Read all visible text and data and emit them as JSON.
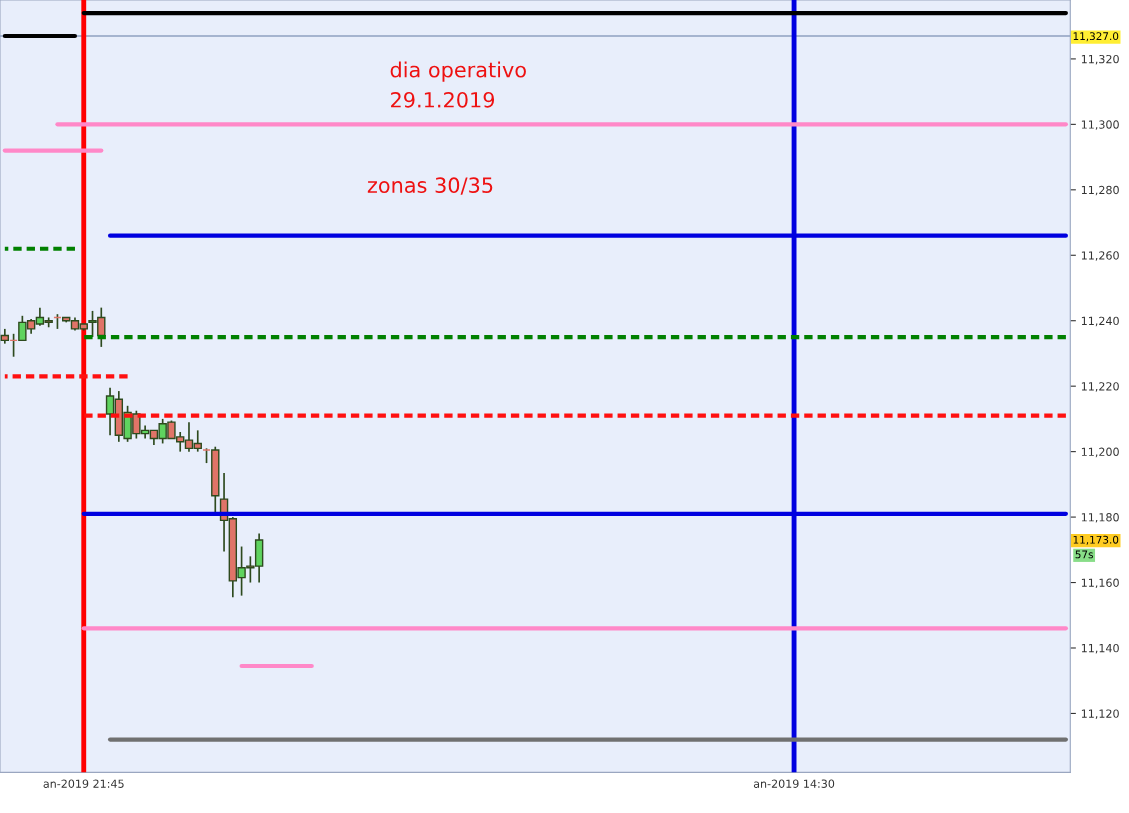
{
  "chart_data": {
    "type": "candlestick",
    "categories": [
      null,
      null,
      null,
      null,
      null,
      null,
      null,
      null,
      null,
      "an-2019 21:45",
      null,
      null,
      null,
      null,
      null,
      null,
      null,
      null,
      null,
      null,
      null,
      null,
      null,
      null,
      null,
      null,
      null,
      null,
      null,
      null,
      null,
      null,
      null,
      null,
      null,
      null,
      null,
      null,
      null,
      null,
      null,
      null,
      null,
      null,
      null,
      null,
      null,
      null,
      null,
      null,
      null,
      null,
      null,
      null,
      null,
      null,
      null,
      null,
      null,
      null,
      null,
      null,
      null,
      null,
      null,
      null,
      null,
      null,
      null,
      null,
      null,
      null,
      null,
      null,
      null,
      null,
      null,
      null,
      null,
      null,
      null,
      null,
      null,
      null,
      null,
      null,
      null,
      null,
      null,
      null,
      "an-2019 14:30",
      null,
      null,
      null,
      null,
      null,
      null,
      null,
      null,
      null,
      null,
      null,
      null,
      null,
      null,
      null,
      null,
      null,
      null,
      null,
      null,
      null,
      null,
      null,
      null,
      null,
      null,
      null,
      null,
      null,
      null,
      null
    ],
    "ohlc": [
      [
        11235.5,
        11237.5,
        11233,
        11234
      ],
      [
        11234,
        11236,
        11229,
        11234
      ],
      [
        11234,
        11241.5,
        11234,
        11239.5
      ],
      [
        11240,
        11240.5,
        11236,
        11237.5
      ],
      [
        11239,
        11244,
        11238.5,
        11241
      ],
      [
        11240,
        11241,
        11238,
        11239.5
      ],
      [
        11241,
        11242,
        11237.5,
        11241
      ],
      [
        11241,
        11241,
        11239.5,
        11240
      ],
      [
        11240,
        11241,
        11237,
        11237.5
      ],
      [
        11239,
        11239,
        11237,
        11237.5
      ],
      [
        11239.5,
        11243,
        11235,
        11240
      ],
      [
        11241,
        11244,
        11232,
        11235.5
      ],
      [
        11211.5,
        11219.5,
        11205,
        11217
      ],
      [
        11216,
        11218.5,
        11203,
        11205
      ],
      [
        11204,
        11214,
        11203,
        11212
      ],
      [
        11211.5,
        11212.5,
        11204,
        11205.5
      ],
      [
        11205.5,
        11208,
        11204,
        11206.5
      ],
      [
        11206.5,
        11206.5,
        11202,
        11204
      ],
      [
        11204,
        11210,
        11202.5,
        11208.5
      ],
      [
        11209,
        11209.5,
        11204,
        11204
      ],
      [
        11204.5,
        11206,
        11200,
        11203
      ],
      [
        11203.5,
        11209,
        11200,
        11201
      ],
      [
        11202.5,
        11206.5,
        11200,
        11201
      ],
      [
        11200.5,
        11201,
        11196.5,
        11200.5
      ],
      [
        11200.5,
        11201.5,
        11181,
        11186.5
      ],
      [
        11185.5,
        11193.5,
        11169.5,
        11179
      ],
      [
        11179.5,
        11180,
        11155.5,
        11160.5
      ],
      [
        11161.5,
        11171,
        11156,
        11164.5
      ],
      [
        11165,
        11168,
        11160,
        11164.5
      ],
      [
        11165,
        11175,
        11160,
        11173
      ],
      null,
      null,
      null,
      null,
      null,
      null,
      null,
      null,
      null,
      null,
      null,
      null,
      null,
      null,
      null,
      null,
      null,
      null,
      null,
      null,
      null,
      null,
      null,
      null,
      null,
      null,
      null,
      null,
      null,
      null,
      null,
      null,
      null,
      null,
      null,
      null,
      null,
      null,
      null,
      null,
      null,
      null,
      null,
      null,
      null,
      null,
      null,
      null,
      null,
      null,
      null,
      null,
      null,
      null,
      null,
      null,
      null,
      null,
      null,
      null,
      null,
      null,
      null,
      null,
      null,
      null,
      null,
      null,
      null,
      null,
      null,
      null,
      null,
      null,
      null,
      null,
      null,
      null,
      null,
      null,
      null,
      null,
      null,
      null,
      null,
      null,
      null,
      null,
      null,
      null,
      null,
      null
    ],
    "colors": [
      "#e07468",
      "#e07468",
      "#5fd35f",
      "#e07468",
      "#5fd35f",
      "#e07468",
      "#e07468",
      "#e07468",
      "#e07468",
      "#e07468",
      "#5fd35f",
      "#e07468",
      "#5fd35f",
      "#e07468",
      "#5fd35f",
      "#e07468",
      "#5fd35f",
      "#e07468",
      "#5fd35f",
      "#e07468",
      "#e07468",
      "#e07468",
      "#e07468",
      "#e07468",
      "#e07468",
      "#e07468",
      "#e07468",
      "#5fd35f",
      "#e07468",
      "#5fd35f",
      null,
      null,
      null,
      null,
      null,
      null,
      null,
      null,
      null,
      null,
      null,
      null,
      null,
      null,
      null,
      null,
      null,
      null,
      null,
      null,
      null,
      null,
      null,
      null,
      null,
      null,
      null,
      null,
      null,
      null,
      null,
      null,
      null,
      null,
      null,
      null,
      null,
      null,
      null,
      null,
      null,
      null,
      null,
      null,
      null,
      null,
      null,
      null,
      null,
      null,
      null,
      null,
      null,
      null,
      null,
      null,
      null,
      null,
      null,
      null,
      null,
      null,
      null,
      null,
      null,
      null,
      null,
      null,
      null,
      null,
      null,
      null,
      null,
      null,
      null,
      null,
      null,
      null,
      null,
      null,
      null,
      null,
      null,
      null,
      null,
      null,
      null,
      null,
      null,
      null,
      null,
      null
    ],
    "series": [
      {
        "type": "line",
        "color": "#000000",
        "line_style": "solid",
        "values": [
          null,
          null,
          null,
          null,
          null,
          null,
          null,
          null,
          null,
          11334,
          11334,
          11334,
          11334,
          11334,
          11334,
          11334,
          11334,
          11334,
          11334,
          11334,
          11334,
          11334,
          11334,
          11334,
          11334,
          11334,
          11334,
          11334,
          11334,
          11334,
          11334,
          11334,
          11334,
          11334,
          11334,
          11334,
          11334,
          11334,
          11334,
          11334,
          11334,
          11334,
          11334,
          11334,
          11334,
          11334,
          11334,
          11334,
          11334,
          11334,
          11334,
          11334,
          11334,
          11334,
          11334,
          11334,
          11334,
          11334,
          11334,
          11334,
          11334,
          11334,
          11334,
          11334,
          11334,
          11334,
          11334,
          11334,
          11334,
          11334,
          11334,
          11334,
          11334,
          11334,
          11334,
          11334,
          11334,
          11334,
          11334,
          11334,
          11334,
          11334,
          11334,
          11334,
          11334,
          11334,
          11334,
          11334,
          11334,
          11334,
          11334,
          11334,
          11334,
          11334,
          11334,
          11334,
          11334,
          11334,
          11334,
          11334,
          11334,
          11334,
          11334,
          11334,
          11334,
          11334,
          11334,
          11334,
          11334,
          11334,
          11334,
          11334,
          11334,
          11334,
          11334,
          11334,
          11334,
          11334,
          11334,
          11334,
          11334,
          11334
        ]
      },
      {
        "type": "line",
        "color": "#000000",
        "line_style": "solid",
        "values": [
          11327,
          11327,
          11327,
          11327,
          11327,
          11327,
          11327,
          11327,
          11327,
          null,
          null,
          null,
          null,
          null,
          null,
          null,
          null,
          null,
          null,
          null,
          null,
          null,
          null,
          null,
          null,
          null,
          null,
          null,
          null,
          null,
          null,
          null,
          null,
          null,
          null,
          null,
          null,
          null,
          null,
          null,
          null,
          null,
          null,
          null,
          null,
          null,
          null,
          null,
          null,
          null,
          null,
          null,
          null,
          null,
          null,
          null,
          null,
          null,
          null,
          null,
          null,
          null,
          null,
          null,
          null,
          null,
          null,
          null,
          null,
          null,
          null,
          null,
          null,
          null,
          null,
          null,
          null,
          null,
          null,
          null,
          null,
          null,
          null,
          null,
          null,
          null,
          null,
          null,
          null,
          null,
          null,
          null,
          null,
          null,
          null,
          null,
          null,
          null,
          null,
          null,
          null,
          null,
          null,
          null,
          null,
          null,
          null,
          null,
          null,
          null,
          null,
          null,
          null,
          null,
          null,
          null,
          null,
          null,
          null,
          null,
          null,
          null
        ]
      },
      {
        "type": "line",
        "color": "#ff88c8",
        "line_style": "solid",
        "values": [
          null,
          null,
          null,
          null,
          null,
          null,
          11300,
          11300,
          11300,
          11300,
          11300,
          11300,
          11300,
          11300,
          11300,
          11300,
          11300,
          11300,
          11300,
          11300,
          11300,
          11300,
          11300,
          11300,
          11300,
          11300,
          11300,
          11300,
          11300,
          11300,
          11300,
          11300,
          11300,
          11300,
          11300,
          11300,
          11300,
          11300,
          11300,
          11300,
          11300,
          11300,
          11300,
          11300,
          11300,
          11300,
          11300,
          11300,
          11300,
          11300,
          11300,
          11300,
          11300,
          11300,
          11300,
          11300,
          11300,
          11300,
          11300,
          11300,
          11300,
          11300,
          11300,
          11300,
          11300,
          11300,
          11300,
          11300,
          11300,
          11300,
          11300,
          11300,
          11300,
          11300,
          11300,
          11300,
          11300,
          11300,
          11300,
          11300,
          11300,
          11300,
          11300,
          11300,
          11300,
          11300,
          11300,
          11300,
          11300,
          11300,
          11300,
          11300,
          11300,
          11300,
          11300,
          11300,
          11300,
          11300,
          11300,
          11300,
          11300,
          11300,
          11300,
          11300,
          11300,
          11300,
          11300,
          11300,
          11300,
          11300,
          11300,
          11300,
          11300,
          11300,
          11300,
          11300,
          11300,
          11300,
          11300,
          11300,
          11300,
          11300
        ]
      },
      {
        "type": "line",
        "color": "#ff88c8",
        "line_style": "solid",
        "values": [
          11292,
          11292,
          11292,
          11292,
          11292,
          11292,
          11292,
          11292,
          11292,
          11292,
          11292,
          11292,
          null,
          null,
          null,
          null,
          null,
          null,
          null,
          null,
          null,
          null,
          null,
          null,
          null,
          null,
          null,
          null,
          null,
          null,
          null,
          null,
          null,
          null,
          null,
          null,
          null,
          null,
          null,
          null,
          null,
          null,
          null,
          null,
          null,
          null,
          null,
          null,
          null,
          null,
          null,
          null,
          null,
          null,
          null,
          null,
          null,
          null,
          null,
          null,
          null,
          null,
          null,
          null,
          null,
          null,
          null,
          null,
          null,
          null,
          null,
          null,
          null,
          null,
          null,
          null,
          null,
          null,
          null,
          null,
          null,
          null,
          null,
          null,
          null,
          null,
          null,
          null,
          null,
          null,
          null,
          null,
          null,
          null,
          null,
          null,
          null,
          null,
          null,
          null,
          null,
          null,
          null,
          null,
          null,
          null,
          null,
          null,
          null,
          null,
          null,
          null,
          null,
          null,
          null,
          null,
          null,
          null,
          null,
          null,
          null,
          null
        ]
      },
      {
        "type": "line",
        "color": "#0000e0",
        "line_style": "solid",
        "values": [
          null,
          null,
          null,
          null,
          null,
          null,
          null,
          null,
          null,
          null,
          null,
          null,
          11266,
          11266,
          11266,
          11266,
          11266,
          11266,
          11266,
          11266,
          11266,
          11266,
          11266,
          11266,
          11266,
          11266,
          11266,
          11266,
          11266,
          11266,
          11266,
          11266,
          11266,
          11266,
          11266,
          11266,
          11266,
          11266,
          11266,
          11266,
          11266,
          11266,
          11266,
          11266,
          11266,
          11266,
          11266,
          11266,
          11266,
          11266,
          11266,
          11266,
          11266,
          11266,
          11266,
          11266,
          11266,
          11266,
          11266,
          11266,
          11266,
          11266,
          11266,
          11266,
          11266,
          11266,
          11266,
          11266,
          11266,
          11266,
          11266,
          11266,
          11266,
          11266,
          11266,
          11266,
          11266,
          11266,
          11266,
          11266,
          11266,
          11266,
          11266,
          11266,
          11266,
          11266,
          11266,
          11266,
          11266,
          11266,
          11266,
          11266,
          11266,
          11266,
          11266,
          11266,
          11266,
          11266,
          11266,
          11266,
          11266,
          11266,
          11266,
          11266,
          11266,
          11266,
          11266,
          11266,
          11266,
          11266,
          11266,
          11266,
          11266,
          11266,
          11266,
          11266,
          11266,
          11266,
          11266,
          11266,
          11266,
          11266
        ]
      },
      {
        "type": "line",
        "color": "#008000",
        "line_style": "dashed",
        "values": [
          11262,
          11262,
          11262,
          11262,
          11262,
          11262,
          11262,
          11262,
          11262,
          null,
          null,
          null,
          null,
          null,
          null,
          null,
          null,
          null,
          null,
          null,
          null,
          null,
          null,
          null,
          null,
          null,
          null,
          null,
          null,
          null,
          null,
          null,
          null,
          null,
          null,
          null,
          null,
          null,
          null,
          null,
          null,
          null,
          null,
          null,
          null,
          null,
          null,
          null,
          null,
          null,
          null,
          null,
          null,
          null,
          null,
          null,
          null,
          null,
          null,
          null,
          null,
          null,
          null,
          null,
          null,
          null,
          null,
          null,
          null,
          null,
          null,
          null,
          null,
          null,
          null,
          null,
          null,
          null,
          null,
          null,
          null,
          null,
          null,
          null,
          null,
          null,
          null,
          null,
          null,
          null,
          null,
          null,
          null,
          null,
          null,
          null,
          null,
          null,
          null,
          null,
          null,
          null,
          null,
          null,
          null,
          null,
          null,
          null,
          null,
          null,
          null,
          null,
          null,
          null,
          null,
          null,
          null,
          null,
          null,
          null,
          null,
          null
        ]
      },
      {
        "type": "line",
        "color": "#008000",
        "line_style": "dashed",
        "values": [
          null,
          null,
          null,
          null,
          null,
          null,
          null,
          null,
          null,
          11235,
          11235,
          11235,
          11235,
          11235,
          11235,
          11235,
          11235,
          11235,
          11235,
          11235,
          11235,
          11235,
          11235,
          11235,
          11235,
          11235,
          11235,
          11235,
          11235,
          11235,
          11235,
          11235,
          11235,
          11235,
          11235,
          11235,
          11235,
          11235,
          11235,
          11235,
          11235,
          11235,
          11235,
          11235,
          11235,
          11235,
          11235,
          11235,
          11235,
          11235,
          11235,
          11235,
          11235,
          11235,
          11235,
          11235,
          11235,
          11235,
          11235,
          11235,
          11235,
          11235,
          11235,
          11235,
          11235,
          11235,
          11235,
          11235,
          11235,
          11235,
          11235,
          11235,
          11235,
          11235,
          11235,
          11235,
          11235,
          11235,
          11235,
          11235,
          11235,
          11235,
          11235,
          11235,
          11235,
          11235,
          11235,
          11235,
          11235,
          11235,
          11235,
          11235,
          11235,
          11235,
          11235,
          11235,
          11235,
          11235,
          11235,
          11235,
          11235,
          11235,
          11235,
          11235,
          11235,
          11235,
          11235,
          11235,
          11235,
          11235,
          11235,
          11235,
          11235,
          11235,
          11235,
          11235,
          11235,
          11235,
          11235,
          11235,
          11235,
          11235
        ]
      },
      {
        "type": "line",
        "color": "#ff1010",
        "line_style": "dashed",
        "values": [
          11223,
          11223,
          11223,
          11223,
          11223,
          11223,
          11223,
          11223,
          11223,
          11223,
          11223,
          11223,
          11223,
          11223,
          11223,
          null,
          null,
          null,
          null,
          null,
          null,
          null,
          null,
          null,
          null,
          null,
          null,
          null,
          null,
          null,
          null,
          null,
          null,
          null,
          null,
          null,
          null,
          null,
          null,
          null,
          null,
          null,
          null,
          null,
          null,
          null,
          null,
          null,
          null,
          null,
          null,
          null,
          null,
          null,
          null,
          null,
          null,
          null,
          null,
          null,
          null,
          null,
          null,
          null,
          null,
          null,
          null,
          null,
          null,
          null,
          null,
          null,
          null,
          null,
          null,
          null,
          null,
          null,
          null,
          null,
          null,
          null,
          null,
          null,
          null,
          null,
          null,
          null,
          null,
          null,
          null,
          null,
          null,
          null,
          null,
          null,
          null,
          null,
          null,
          null,
          null,
          null,
          null,
          null,
          null,
          null,
          null,
          null,
          null,
          null,
          null,
          null,
          null,
          null,
          null,
          null,
          null,
          null,
          null,
          null,
          null,
          null
        ]
      },
      {
        "type": "line",
        "color": "#ff1010",
        "line_style": "dashed",
        "values": [
          null,
          null,
          null,
          null,
          null,
          null,
          null,
          null,
          null,
          11211,
          11211,
          11211,
          11211,
          11211,
          11211,
          11211,
          11211,
          11211,
          11211,
          11211,
          11211,
          11211,
          11211,
          11211,
          11211,
          11211,
          11211,
          11211,
          11211,
          11211,
          11211,
          11211,
          11211,
          11211,
          11211,
          11211,
          11211,
          11211,
          11211,
          11211,
          11211,
          11211,
          11211,
          11211,
          11211,
          11211,
          11211,
          11211,
          11211,
          11211,
          11211,
          11211,
          11211,
          11211,
          11211,
          11211,
          11211,
          11211,
          11211,
          11211,
          11211,
          11211,
          11211,
          11211,
          11211,
          11211,
          11211,
          11211,
          11211,
          11211,
          11211,
          11211,
          11211,
          11211,
          11211,
          11211,
          11211,
          11211,
          11211,
          11211,
          11211,
          11211,
          11211,
          11211,
          11211,
          11211,
          11211,
          11211,
          11211,
          11211,
          11211,
          11211,
          11211,
          11211,
          11211,
          11211,
          11211,
          11211,
          11211,
          11211,
          11211,
          11211,
          11211,
          11211,
          11211,
          11211,
          11211,
          11211,
          11211,
          11211,
          11211,
          11211,
          11211,
          11211,
          11211,
          11211,
          11211,
          11211,
          11211,
          11211,
          11211,
          11211
        ]
      },
      {
        "type": "line",
        "color": "#0000e0",
        "line_style": "solid",
        "values": [
          null,
          null,
          null,
          null,
          null,
          null,
          null,
          null,
          null,
          11181,
          11181,
          11181,
          11181,
          11181,
          11181,
          11181,
          11181,
          11181,
          11181,
          11181,
          11181,
          11181,
          11181,
          11181,
          11181,
          11181,
          11181,
          11181,
          11181,
          11181,
          11181,
          11181,
          11181,
          11181,
          11181,
          11181,
          11181,
          11181,
          11181,
          11181,
          11181,
          11181,
          11181,
          11181,
          11181,
          11181,
          11181,
          11181,
          11181,
          11181,
          11181,
          11181,
          11181,
          11181,
          11181,
          11181,
          11181,
          11181,
          11181,
          11181,
          11181,
          11181,
          11181,
          11181,
          11181,
          11181,
          11181,
          11181,
          11181,
          11181,
          11181,
          11181,
          11181,
          11181,
          11181,
          11181,
          11181,
          11181,
          11181,
          11181,
          11181,
          11181,
          11181,
          11181,
          11181,
          11181,
          11181,
          11181,
          11181,
          11181,
          11181,
          11181,
          11181,
          11181,
          11181,
          11181,
          11181,
          11181,
          11181,
          11181,
          11181,
          11181,
          11181,
          11181,
          11181,
          11181,
          11181,
          11181,
          11181,
          11181,
          11181,
          11181,
          11181,
          11181,
          11181,
          11181,
          11181,
          11181,
          11181,
          11181,
          11181,
          11181
        ]
      },
      {
        "type": "line",
        "color": "#ff88c8",
        "line_style": "solid",
        "values": [
          null,
          null,
          null,
          null,
          null,
          null,
          null,
          null,
          null,
          11146,
          11146,
          11146,
          11146,
          11146,
          11146,
          11146,
          11146,
          11146,
          11146,
          11146,
          11146,
          11146,
          11146,
          11146,
          11146,
          11146,
          11146,
          11146,
          11146,
          11146,
          11146,
          11146,
          11146,
          11146,
          11146,
          11146,
          11146,
          11146,
          11146,
          11146,
          11146,
          11146,
          11146,
          11146,
          11146,
          11146,
          11146,
          11146,
          11146,
          11146,
          11146,
          11146,
          11146,
          11146,
          11146,
          11146,
          11146,
          11146,
          11146,
          11146,
          11146,
          11146,
          11146,
          11146,
          11146,
          11146,
          11146,
          11146,
          11146,
          11146,
          11146,
          11146,
          11146,
          11146,
          11146,
          11146,
          11146,
          11146,
          11146,
          11146,
          11146,
          11146,
          11146,
          11146,
          11146,
          11146,
          11146,
          11146,
          11146,
          11146,
          11146,
          11146,
          11146,
          11146,
          11146,
          11146,
          11146,
          11146,
          11146,
          11146,
          11146,
          11146,
          11146,
          11146,
          11146,
          11146,
          11146,
          11146,
          11146,
          11146,
          11146,
          11146,
          11146,
          11146,
          11146,
          11146,
          11146,
          11146,
          11146,
          11146,
          11146,
          11146
        ]
      },
      {
        "type": "line",
        "color": "#ff88c8",
        "line_style": "solid",
        "values": [
          null,
          null,
          null,
          null,
          null,
          null,
          null,
          null,
          null,
          null,
          null,
          null,
          null,
          null,
          null,
          null,
          null,
          null,
          null,
          null,
          null,
          null,
          null,
          null,
          null,
          null,
          null,
          11134.5,
          11134.5,
          11134.5,
          11134.5,
          11134.5,
          11134.5,
          11134.5,
          11134.5,
          11134.5,
          null,
          null,
          null,
          null,
          null,
          null,
          null,
          null,
          null,
          null,
          null,
          null,
          null,
          null,
          null,
          null,
          null,
          null,
          null,
          null,
          null,
          null,
          null,
          null,
          null,
          null,
          null,
          null,
          null,
          null,
          null,
          null,
          null,
          null,
          null,
          null,
          null,
          null,
          null,
          null,
          null,
          null,
          null,
          null,
          null,
          null,
          null,
          null,
          null,
          null,
          null,
          null,
          null,
          null,
          null,
          null,
          null,
          null,
          null,
          null,
          null,
          null,
          null,
          null,
          null,
          null,
          null,
          null,
          null,
          null,
          null,
          null,
          null,
          null,
          null,
          null,
          null,
          null,
          null,
          null,
          null,
          null,
          null,
          null,
          null,
          null
        ]
      },
      {
        "type": "line",
        "color": "#707070",
        "line_style": "solid",
        "values": [
          null,
          null,
          null,
          null,
          null,
          null,
          null,
          null,
          null,
          null,
          null,
          null,
          11112,
          11112,
          11112,
          11112,
          11112,
          11112,
          11112,
          11112,
          11112,
          11112,
          11112,
          11112,
          11112,
          11112,
          11112,
          11112,
          11112,
          11112,
          11112,
          11112,
          11112,
          11112,
          11112,
          11112,
          11112,
          11112,
          11112,
          11112,
          11112,
          11112,
          11112,
          11112,
          11112,
          11112,
          11112,
          11112,
          11112,
          11112,
          11112,
          11112,
          11112,
          11112,
          11112,
          11112,
          11112,
          11112,
          11112,
          11112,
          11112,
          11112,
          11112,
          11112,
          11112,
          11112,
          11112,
          11112,
          11112,
          11112,
          11112,
          11112,
          11112,
          11112,
          11112,
          11112,
          11112,
          11112,
          11112,
          11112,
          11112,
          11112,
          11112,
          11112,
          11112,
          11112,
          11112,
          11112,
          11112,
          11112,
          11112,
          11112,
          11112,
          11112,
          11112,
          11112,
          11112,
          11112,
          11112,
          11112,
          11112,
          11112,
          11112,
          11112,
          11112,
          11112,
          11112,
          11112,
          11112,
          11112,
          11112,
          11112,
          11112,
          11112,
          11112,
          11112,
          11112,
          11112,
          11112,
          11112,
          11112,
          11112
        ]
      }
    ],
    "ref_lines": [
      {
        "axis": "y",
        "value": 11327,
        "color": "#8fa0c0"
      },
      {
        "axis": "x",
        "value": "an-2019 21:45",
        "color": "#ff0000"
      },
      {
        "axis": "x",
        "value": "an-2019 14:30",
        "color": "#0000e0"
      }
    ],
    "ylim": [
      11102,
      11338
    ],
    "yticks": [
      {
        "value": 11120,
        "label": "11,120"
      },
      {
        "value": 11140,
        "label": "11,140"
      },
      {
        "value": 11160,
        "label": "11,160"
      },
      {
        "value": 11180,
        "label": "11,180"
      },
      {
        "value": 11200,
        "label": "11,200"
      },
      {
        "value": 11220,
        "label": "11,220"
      },
      {
        "value": 11240,
        "label": "11,240"
      },
      {
        "value": 11260,
        "label": "11,260"
      },
      {
        "value": 11280,
        "label": "11,280"
      },
      {
        "value": 11300,
        "label": "11,300"
      },
      {
        "value": 11320,
        "label": "11,320"
      }
    ],
    "annotations": [
      "dia operativo",
      "29.1.2019",
      "zonas 30/35",
      "11,327.0",
      "11,173.0",
      "57s"
    ]
  }
}
